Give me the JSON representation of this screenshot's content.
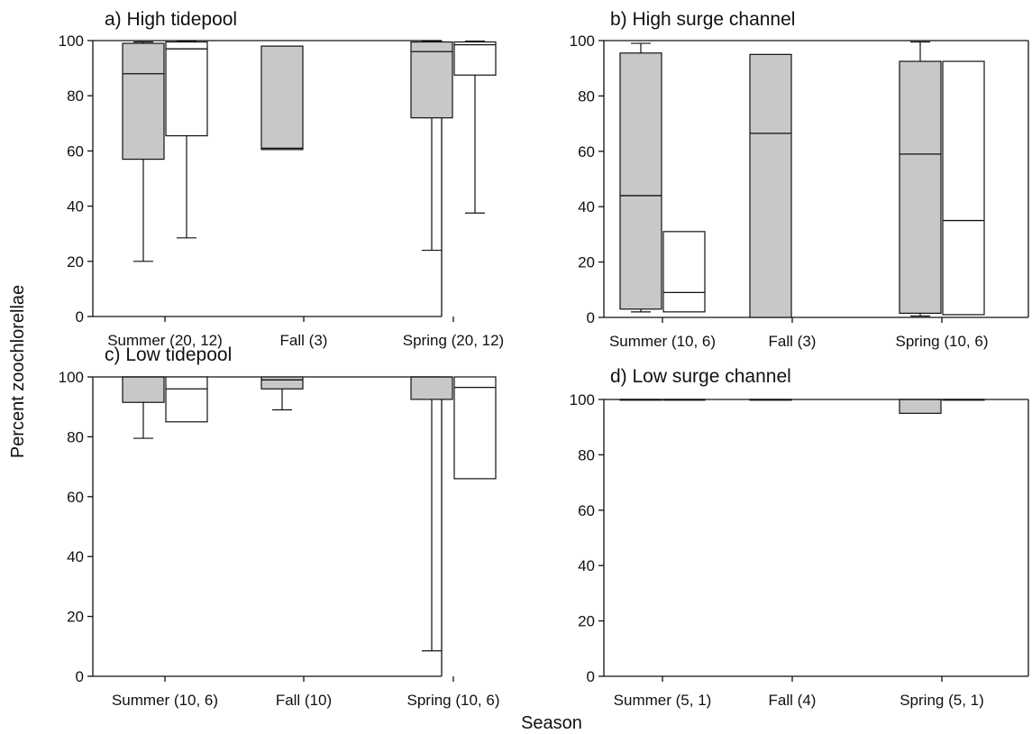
{
  "figure": {
    "ylabel": "Percent zoochlorellae",
    "xlabel": "Season"
  },
  "chart_data": [
    {
      "type": "box",
      "title": "a) High tidepool",
      "ylim": [
        0,
        100
      ],
      "yticks": [
        0,
        20,
        40,
        60,
        80,
        100
      ],
      "categories": [
        "Summer (20, 12)",
        "Fall (3)",
        "Spring (20, 12)"
      ],
      "series": [
        {
          "fill": "#c8c8c8",
          "boxes": [
            {
              "min": 20,
              "q1": 57,
              "median": 88,
              "q3": 99,
              "max": 99.5
            },
            {
              "min": 60.5,
              "q1": 60.5,
              "median": 61,
              "q3": 98,
              "max": 98
            },
            {
              "min": 24,
              "q1": 72,
              "median": 96,
              "q3": 99.5,
              "max": 99.8
            }
          ]
        },
        {
          "fill": "#ffffff",
          "boxes": [
            {
              "min": 28.5,
              "q1": 65.5,
              "median": 97,
              "q3": 99.5,
              "max": 99.7
            },
            null,
            {
              "min": 37.5,
              "q1": 87.5,
              "median": 98.5,
              "q3": 99.5,
              "max": 99.8
            }
          ]
        }
      ]
    },
    {
      "type": "box",
      "title": "b) High surge channel",
      "ylim": [
        0,
        100
      ],
      "yticks": [
        0,
        20,
        40,
        60,
        80,
        100
      ],
      "categories": [
        "Summer (10, 6)",
        "Fall (3)",
        "Spring (10, 6)"
      ],
      "series": [
        {
          "fill": "#c8c8c8",
          "boxes": [
            {
              "min": 2,
              "q1": 3,
              "median": 44,
              "q3": 95.5,
              "max": 99
            },
            {
              "min": 0,
              "q1": 0,
              "median": 66.5,
              "q3": 95,
              "max": 95
            },
            {
              "min": 0.5,
              "q1": 1.5,
              "median": 59,
              "q3": 92.5,
              "max": 99.5
            }
          ]
        },
        {
          "fill": "#ffffff",
          "boxes": [
            {
              "min": 2,
              "q1": 2,
              "median": 9,
              "q3": 31,
              "max": 31
            },
            null,
            {
              "min": 1,
              "q1": 1,
              "median": 35,
              "q3": 92.5,
              "max": 92.5
            }
          ]
        }
      ]
    },
    {
      "type": "box",
      "title": "c) Low tidepool",
      "ylim": [
        0,
        100
      ],
      "yticks": [
        0,
        20,
        40,
        60,
        80,
        100
      ],
      "categories": [
        "Summer (10, 6)",
        "Fall (10)",
        "Spring (10, 6)"
      ],
      "series": [
        {
          "fill": "#c8c8c8",
          "boxes": [
            {
              "min": 79.5,
              "q1": 91.5,
              "median": 100,
              "q3": 100,
              "max": 100
            },
            {
              "min": 89,
              "q1": 96,
              "median": 99,
              "q3": 100,
              "max": 100
            },
            {
              "min": 8.5,
              "q1": 92.5,
              "median": 100,
              "q3": 100,
              "max": 100
            }
          ]
        },
        {
          "fill": "#ffffff",
          "boxes": [
            {
              "min": 85,
              "q1": 85,
              "median": 96,
              "q3": 100,
              "max": 100
            },
            null,
            {
              "min": 66,
              "q1": 66,
              "median": 96.5,
              "q3": 100,
              "max": 100
            }
          ]
        }
      ]
    },
    {
      "type": "box",
      "title": "d) Low surge channel",
      "ylim": [
        0,
        100
      ],
      "yticks": [
        0,
        20,
        40,
        60,
        80,
        100
      ],
      "categories": [
        "Summer (5, 1)",
        "Fall (4)",
        "Spring (5, 1)"
      ],
      "series": [
        {
          "fill": "#c8c8c8",
          "boxes": [
            {
              "min": 100,
              "q1": 100,
              "median": 100,
              "q3": 100,
              "max": 100
            },
            {
              "min": 100,
              "q1": 100,
              "median": 100,
              "q3": 100,
              "max": 100
            },
            {
              "min": 95,
              "q1": 95,
              "median": 100,
              "q3": 100,
              "max": 100
            }
          ]
        },
        {
          "fill": "#ffffff",
          "boxes": [
            {
              "min": 100,
              "q1": 100,
              "median": 100,
              "q3": 100,
              "max": 100
            },
            null,
            {
              "min": 100,
              "q1": 100,
              "median": 100,
              "q3": 100,
              "max": 100
            }
          ]
        }
      ]
    }
  ]
}
